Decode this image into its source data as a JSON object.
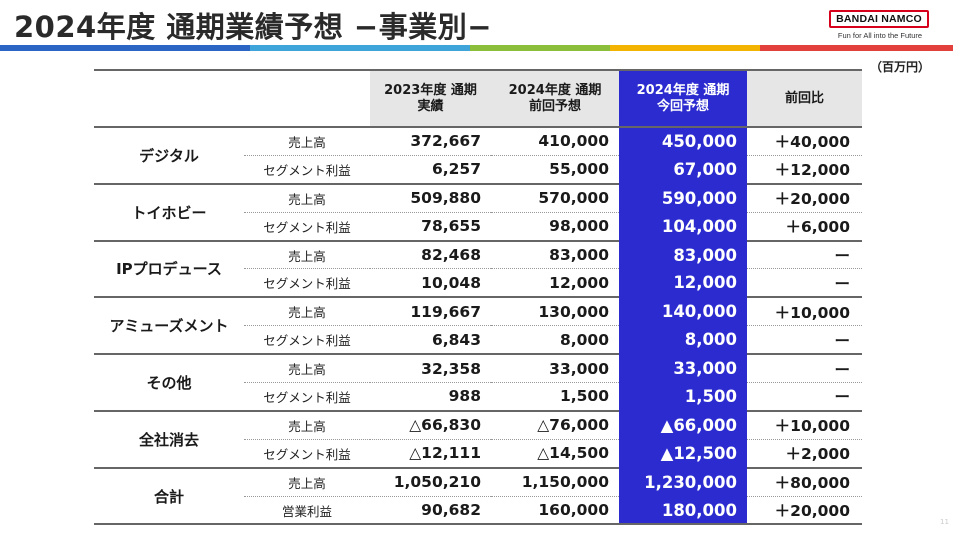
{
  "title": "2024年度 通期業績予想 −事業別−",
  "logo": {
    "brand": "BANDAI NAMCO",
    "tagline": "Fun for All into the Future"
  },
  "unit_note": "（百万円）",
  "colors": {
    "accent_blue": "#2b2bd0",
    "stripe": [
      "#2b66c4",
      "#3fa4d9",
      "#8bbf3b",
      "#f2b400",
      "#e2403a"
    ],
    "logo_red": "#d6001c"
  },
  "table": {
    "headers": {
      "prev_year": "2023年度 通期\n実績",
      "prev_forecast": "2024年度 通期\n前回予想",
      "curr_forecast": "2024年度 通期\n今回予想",
      "diff": "前回比"
    },
    "segments": [
      {
        "name": "デジタル",
        "rows": [
          {
            "item": "売上高",
            "prev_year": "372,667",
            "prev_forecast": "410,000",
            "curr_forecast": "450,000",
            "diff": "＋40,000"
          },
          {
            "item": "セグメント利益",
            "prev_year": "6,257",
            "prev_forecast": "55,000",
            "curr_forecast": "67,000",
            "diff": "＋12,000"
          }
        ]
      },
      {
        "name": "トイホビー",
        "rows": [
          {
            "item": "売上高",
            "prev_year": "509,880",
            "prev_forecast": "570,000",
            "curr_forecast": "590,000",
            "diff": "＋20,000"
          },
          {
            "item": "セグメント利益",
            "prev_year": "78,655",
            "prev_forecast": "98,000",
            "curr_forecast": "104,000",
            "diff": "＋6,000"
          }
        ]
      },
      {
        "name": "IPプロデュース",
        "rows": [
          {
            "item": "売上高",
            "prev_year": "82,468",
            "prev_forecast": "83,000",
            "curr_forecast": "83,000",
            "diff": "ー"
          },
          {
            "item": "セグメント利益",
            "prev_year": "10,048",
            "prev_forecast": "12,000",
            "curr_forecast": "12,000",
            "diff": "ー"
          }
        ]
      },
      {
        "name": "アミューズメント",
        "rows": [
          {
            "item": "売上高",
            "prev_year": "119,667",
            "prev_forecast": "130,000",
            "curr_forecast": "140,000",
            "diff": "＋10,000"
          },
          {
            "item": "セグメント利益",
            "prev_year": "6,843",
            "prev_forecast": "8,000",
            "curr_forecast": "8,000",
            "diff": "ー"
          }
        ]
      },
      {
        "name": "その他",
        "rows": [
          {
            "item": "売上高",
            "prev_year": "32,358",
            "prev_forecast": "33,000",
            "curr_forecast": "33,000",
            "diff": "ー"
          },
          {
            "item": "セグメント利益",
            "prev_year": "988",
            "prev_forecast": "1,500",
            "curr_forecast": "1,500",
            "diff": "ー"
          }
        ]
      },
      {
        "name": "全社消去",
        "rows": [
          {
            "item": "売上高",
            "prev_year": "△66,830",
            "prev_forecast": "△76,000",
            "curr_forecast": "▲66,000",
            "diff": "＋10,000"
          },
          {
            "item": "セグメント利益",
            "prev_year": "△12,111",
            "prev_forecast": "△14,500",
            "curr_forecast": "▲12,500",
            "diff": "＋2,000"
          }
        ]
      },
      {
        "name": "合計",
        "rows": [
          {
            "item": "売上高",
            "prev_year": "1,050,210",
            "prev_forecast": "1,150,000",
            "curr_forecast": "1,230,000",
            "diff": "＋80,000"
          },
          {
            "item": "営業利益",
            "prev_year": "90,682",
            "prev_forecast": "160,000",
            "curr_forecast": "180,000",
            "diff": "＋20,000"
          }
        ]
      }
    ]
  },
  "page_number": "11"
}
